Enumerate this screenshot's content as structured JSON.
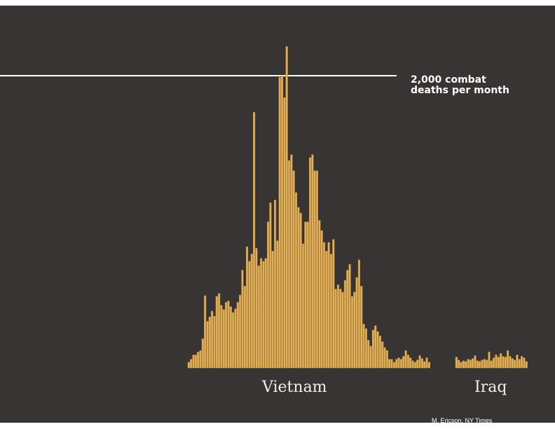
{
  "colors": {
    "background": "#383434",
    "bar": "#e3b05a",
    "bar_edge": "#b98a3a",
    "reference_line": "#ffffff",
    "text": "#ffffff"
  },
  "reference": {
    "line1": "2,000 combat",
    "line2": "deaths per month"
  },
  "groups": {
    "vietnam": "Vietnam",
    "iraq": "Iraq"
  },
  "credit": "M. Ericson, NY Times",
  "chart_data": {
    "type": "bar",
    "title": "",
    "xlabel": "",
    "ylabel": "",
    "ylim": [
      0,
      2300
    ],
    "reference_line": {
      "value": 2000,
      "label": "2,000 combat deaths per month"
    },
    "series": [
      {
        "name": "Vietnam",
        "values": [
          40,
          60,
          90,
          90,
          110,
          120,
          200,
          495,
          320,
          350,
          390,
          355,
          490,
          510,
          430,
          400,
          450,
          460,
          420,
          380,
          405,
          450,
          500,
          670,
          560,
          830,
          730,
          780,
          1750,
          820,
          700,
          750,
          730,
          750,
          1000,
          1130,
          800,
          1150,
          870,
          1990,
          2000,
          1850,
          2200,
          1420,
          1460,
          1350,
          1200,
          1100,
          1060,
          850,
          1000,
          1000,
          1440,
          1460,
          1350,
          1350,
          1010,
          940,
          860,
          800,
          860,
          780,
          880,
          540,
          570,
          540,
          520,
          600,
          670,
          710,
          490,
          520,
          620,
          740,
          560,
          300,
          270,
          190,
          150,
          260,
          290,
          250,
          220,
          180,
          140,
          120,
          60,
          60,
          40,
          60,
          70,
          60,
          80,
          120,
          90,
          70,
          50,
          40,
          55,
          85,
          65,
          45,
          70,
          40
        ]
      },
      {
        "name": "Iraq",
        "values": [
          75,
          55,
          40,
          50,
          45,
          60,
          55,
          65,
          85,
          50,
          45,
          55,
          60,
          55,
          110,
          50,
          70,
          90,
          75,
          100,
          80,
          75,
          120,
          80,
          65,
          55,
          90,
          60,
          80,
          70,
          45
        ]
      }
    ]
  }
}
